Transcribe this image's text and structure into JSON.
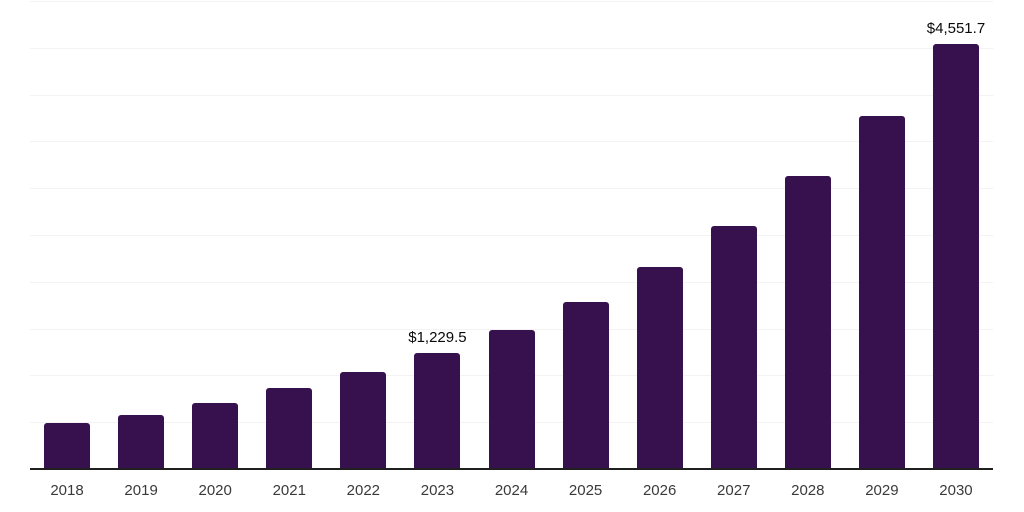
{
  "chart": {
    "background_color": "#ffffff",
    "bar_color": "#36114E",
    "gridline_color": "#f3f3f3",
    "axis_line_color": "#1f1f1f",
    "tick_label_color": "#3a3a3a",
    "data_label_color": "#0a0a0a"
  },
  "chart_data": {
    "type": "bar",
    "title": "",
    "xlabel": "",
    "ylabel": "",
    "categories": [
      "2018",
      "2019",
      "2020",
      "2021",
      "2022",
      "2023",
      "2024",
      "2025",
      "2026",
      "2027",
      "2028",
      "2029",
      "2030"
    ],
    "values": [
      480,
      565,
      695,
      855,
      1025,
      1229.5,
      1480,
      1785,
      2155,
      2595,
      3130,
      3775,
      4551.7
    ],
    "data_labels": [
      "",
      "",
      "",
      "",
      "",
      "$1,229.5",
      "",
      "",
      "",
      "",
      "",
      "",
      "$4,551.7"
    ],
    "ylim": [
      0,
      5000
    ],
    "gridline_values": [
      500,
      1000,
      1500,
      2000,
      2500,
      3000,
      3500,
      4000,
      4500,
      5000
    ],
    "grid": "horizontal",
    "y_axis_tick_labels_visible": false,
    "legend_position": "none"
  }
}
